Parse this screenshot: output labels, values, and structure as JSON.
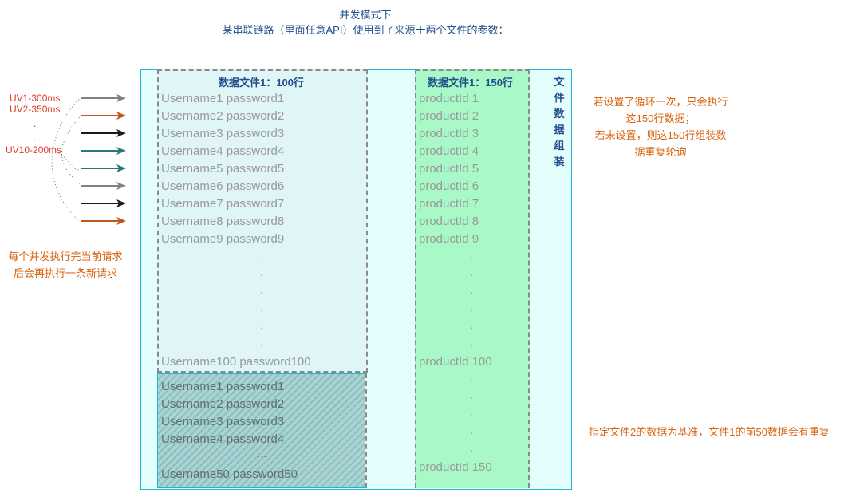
{
  "title": {
    "line1": "并发模式下",
    "line2": "某串联链路（里面任意API）使用到了来源于两个文件的参数："
  },
  "left": {
    "uv_labels": [
      "UV1-300ms",
      "UV2-350ms",
      ".",
      ".",
      "UV10-200ms"
    ],
    "arrow_colors": [
      "#7f7f7f",
      "#c0581e",
      "#1a1a1a",
      "#2a7a78",
      "#2a7a78",
      "#7f7f7f",
      "#1a1a1a",
      "#c0581e"
    ],
    "note": "每个并发执行完当前请求后会再执行一条新请求"
  },
  "file1": {
    "header": "数据文件1：100行",
    "rows": [
      "Username1 password1",
      "Username2 password2",
      "Username3 password3",
      "Username4 password4",
      "Username5 password5",
      "Username6 password6",
      "Username7 password7",
      "Username8 password8",
      "Username9 password9"
    ],
    "dots": [
      ".",
      ".",
      ".",
      ".",
      ".",
      "."
    ],
    "last": "Username100 password100",
    "repeat_rows": [
      "Username1 password1",
      "Username2 password2",
      "Username3 password3",
      "Username4 password4"
    ],
    "repeat_ellipsis": "...",
    "repeat_last": "Username50 password50"
  },
  "file2": {
    "header": "数据文件1：150行",
    "rows": [
      "productId 1",
      "productId 2",
      "productId 3",
      "productId 4",
      "productId 5",
      "productId 6",
      "productId 7",
      "productId 8",
      "productId 9"
    ],
    "dots": [
      ".",
      ".",
      ".",
      ".",
      ".",
      "."
    ],
    "row100": "productId 100",
    "dots2": [
      ".",
      ".",
      ".",
      ".",
      "."
    ],
    "last": "productId 150"
  },
  "vertical_label": [
    "文",
    "件",
    "数",
    "据",
    "组",
    "装"
  ],
  "notes": {
    "loop": [
      "若设置了循环一次，只会执行",
      "这150行数据；",
      "若未设置，则这150行组装数",
      "据重复轮询"
    ],
    "base": "指定文件2的数据为基准，文件1的前50数据会有重复"
  }
}
